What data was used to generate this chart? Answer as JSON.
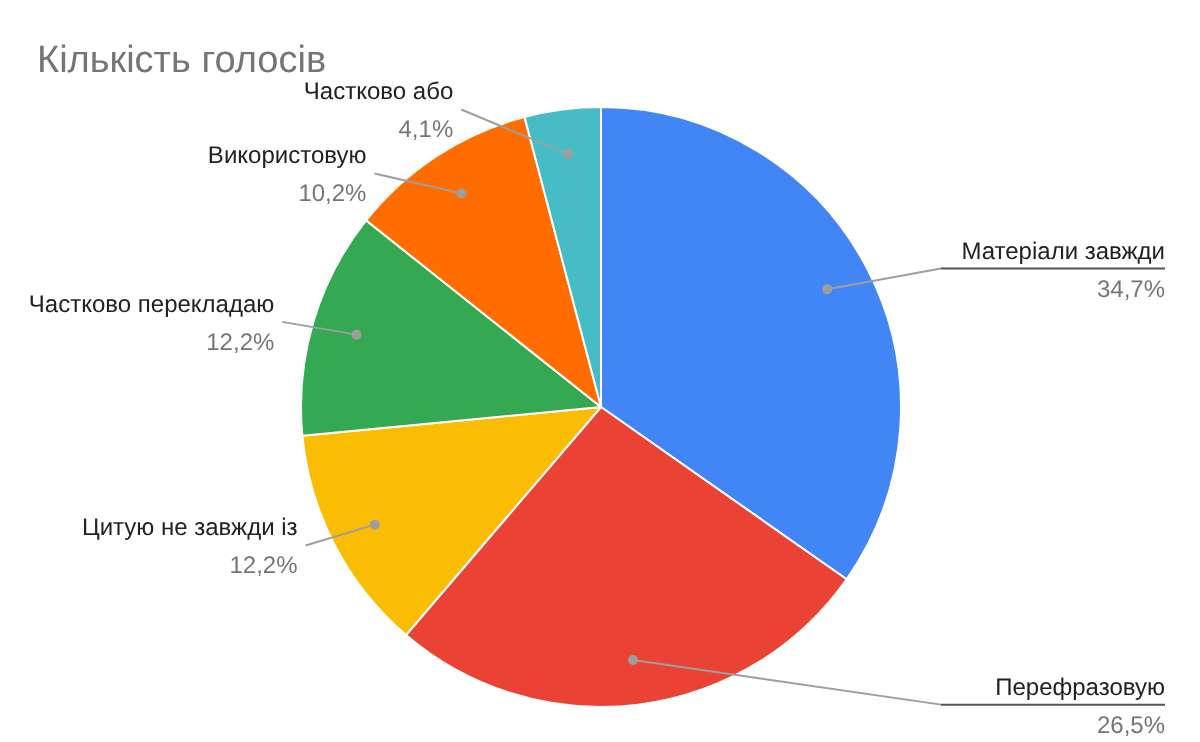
{
  "chart_data": {
    "type": "pie",
    "title": "Кількість голосів",
    "categories": [
      "Матеріали завжди",
      "Перефразовую",
      "Цитую не завжди із",
      "Частково перекладаю",
      "Використовую",
      "Частково або"
    ],
    "values": [
      34.7,
      26.5,
      12.2,
      12.2,
      10.2,
      4.1
    ],
    "colors": [
      "#4285f4",
      "#ea4335",
      "#fbbc04",
      "#34a853",
      "#ff6d01",
      "#46bdc6"
    ],
    "value_labels": [
      "34,7%",
      "26,5%",
      "12,2%",
      "12,2%",
      "10,2%",
      "4,1%"
    ]
  }
}
